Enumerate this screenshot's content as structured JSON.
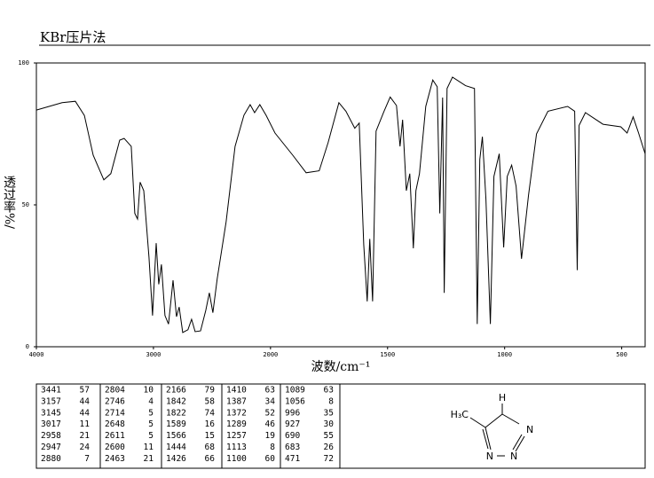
{
  "chart_data": {
    "type": "line",
    "title": "KBr压片法",
    "xlabel": "波数/cm⁻¹",
    "ylabel": "透过率%/",
    "x": [
      4000,
      3780,
      3667,
      3590,
      3515,
      3424,
      3364,
      3288,
      3250,
      3190,
      3159,
      3136,
      3114,
      3083,
      3038,
      3008,
      2977,
      2955,
      2932,
      2902,
      2871,
      2833,
      2803,
      2780,
      2750,
      2705,
      2674,
      2644,
      2598,
      2553,
      2523,
      2492,
      2455,
      2379,
      2303,
      2227,
      2174,
      2136,
      2091,
      2038,
      1981,
      1905,
      1848,
      1792,
      1754,
      1708,
      1678,
      1640,
      1621,
      1602,
      1587,
      1576,
      1564,
      1549,
      1515,
      1489,
      1462,
      1447,
      1436,
      1420,
      1405,
      1390,
      1379,
      1364,
      1337,
      1307,
      1288,
      1277,
      1265,
      1258,
      1246,
      1223,
      1167,
      1129,
      1117,
      1106,
      1095,
      1080,
      1061,
      1046,
      1023,
      1004,
      989,
      970,
      951,
      928,
      898,
      864,
      815,
      731,
      701,
      690,
      682,
      655,
      580,
      504,
      477,
      451,
      428,
      400
    ],
    "values": [
      83.4,
      86,
      86.5,
      81.5,
      67.5,
      58.8,
      61,
      72.8,
      73.4,
      70.6,
      47,
      45,
      58,
      55,
      31.5,
      11,
      36.5,
      22,
      29,
      11,
      8,
      23.4,
      10.6,
      14,
      5,
      6,
      9.7,
      5.3,
      5.6,
      12.8,
      19,
      12,
      24,
      44,
      70.6,
      81.6,
      85.3,
      82.5,
      85.3,
      81.6,
      75.3,
      67.5,
      61.3,
      62,
      72,
      86,
      83,
      77,
      78.8,
      36,
      16,
      38,
      16,
      76,
      83,
      88,
      85,
      70.6,
      80,
      55,
      61,
      34.7,
      55,
      61,
      84.7,
      94,
      91.6,
      47,
      87.8,
      19,
      91,
      95,
      92,
      91,
      8,
      66,
      74,
      52,
      8,
      60,
      68,
      35,
      60,
      64,
      56.6,
      31,
      53.4,
      75,
      83,
      84.7,
      83,
      27,
      78,
      82.5,
      78.4,
      77.5,
      75.3,
      81,
      75.3,
      68
    ],
    "color": "#000000",
    "xlim": [
      4000,
      400
    ],
    "ylim": [
      0,
      100
    ],
    "xticks": [
      4000,
      3000,
      2000,
      1500,
      1000,
      500
    ],
    "yticks": [
      0,
      50,
      100
    ]
  },
  "peak_table": {
    "rows": [
      [
        3441,
        57
      ],
      [
        3157,
        44
      ],
      [
        3145,
        44
      ],
      [
        3017,
        11
      ],
      [
        2958,
        21
      ],
      [
        2947,
        24
      ],
      [
        2880,
        7
      ],
      [
        2804,
        10
      ],
      [
        2746,
        4
      ],
      [
        2714,
        5
      ],
      [
        2648,
        5
      ],
      [
        2611,
        5
      ],
      [
        2600,
        11
      ],
      [
        2463,
        21
      ],
      [
        2166,
        79
      ],
      [
        1842,
        58
      ],
      [
        1822,
        74
      ],
      [
        1589,
        16
      ],
      [
        1566,
        15
      ],
      [
        1444,
        68
      ],
      [
        1426,
        66
      ],
      [
        1410,
        63
      ],
      [
        1387,
        34
      ],
      [
        1372,
        52
      ],
      [
        1289,
        46
      ],
      [
        1257,
        19
      ],
      [
        1113,
        8
      ],
      [
        1100,
        60
      ],
      [
        1089,
        63
      ],
      [
        1056,
        8
      ],
      [
        996,
        35
      ],
      [
        927,
        30
      ],
      [
        690,
        55
      ],
      [
        683,
        26
      ],
      [
        471,
        72
      ]
    ]
  },
  "structure": {
    "labels": [
      "H",
      "H₃C",
      "N",
      "N",
      "N"
    ]
  }
}
